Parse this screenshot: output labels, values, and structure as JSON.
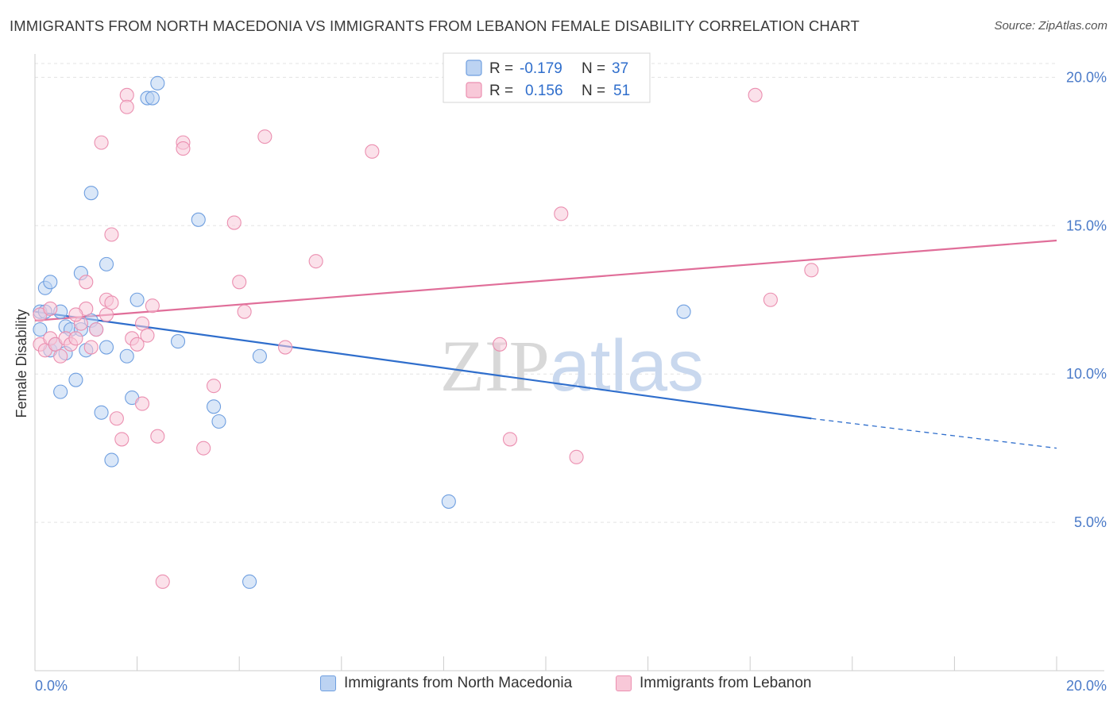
{
  "chart_data": {
    "type": "scatter",
    "title": "IMMIGRANTS FROM NORTH MACEDONIA VS IMMIGRANTS FROM LEBANON FEMALE DISABILITY CORRELATION CHART",
    "source": "Source: ZipAtlas.com",
    "ylabel": "Female Disability",
    "xlabel": "",
    "xlim": [
      0,
      20
    ],
    "ylim": [
      0,
      21
    ],
    "x_tick_labels": [
      "0.0%",
      "20.0%"
    ],
    "y_ticks": [
      5,
      10,
      15,
      20
    ],
    "y_tick_labels": [
      "5.0%",
      "10.0%",
      "15.0%",
      "20.0%"
    ],
    "watermark": "ZIPatlas",
    "legend": [
      {
        "r_label": "R =",
        "r_value": "-0.179",
        "n_label": "N =",
        "n_value": "37"
      },
      {
        "r_label": "R =",
        "r_value": "0.156",
        "n_label": "N =",
        "n_value": "51"
      }
    ],
    "series": [
      {
        "name": "Immigrants from North Macedonia",
        "color": "#6f9fe0",
        "fill": "#bcd3f2",
        "line_color": "#2f6ecc",
        "trend": {
          "x0": 0,
          "y0": 12.1,
          "x1": 15.2,
          "y1": 8.5,
          "dash_to": 20,
          "dash_y": 7.5
        },
        "points": [
          [
            0.1,
            12.1
          ],
          [
            0.1,
            11.5
          ],
          [
            0.2,
            12.9
          ],
          [
            0.2,
            12.1
          ],
          [
            0.3,
            13.1
          ],
          [
            0.3,
            10.8
          ],
          [
            0.4,
            11.0
          ],
          [
            0.5,
            12.1
          ],
          [
            0.5,
            9.4
          ],
          [
            0.6,
            11.6
          ],
          [
            0.7,
            11.5
          ],
          [
            0.8,
            9.8
          ],
          [
            0.9,
            13.4
          ],
          [
            1.0,
            10.8
          ],
          [
            1.1,
            11.8
          ],
          [
            1.1,
            16.1
          ],
          [
            1.2,
            11.5
          ],
          [
            1.3,
            8.7
          ],
          [
            1.4,
            10.9
          ],
          [
            1.4,
            13.7
          ],
          [
            1.5,
            7.1
          ],
          [
            1.8,
            10.6
          ],
          [
            1.9,
            9.2
          ],
          [
            2.0,
            12.5
          ],
          [
            2.2,
            19.3
          ],
          [
            2.3,
            19.3
          ],
          [
            2.4,
            19.8
          ],
          [
            2.8,
            11.1
          ],
          [
            3.2,
            15.2
          ],
          [
            3.5,
            8.9
          ],
          [
            3.6,
            8.4
          ],
          [
            4.2,
            3.0
          ],
          [
            4.4,
            10.6
          ],
          [
            8.1,
            5.7
          ],
          [
            12.7,
            12.1
          ],
          [
            0.6,
            10.7
          ],
          [
            0.9,
            11.5
          ]
        ]
      },
      {
        "name": "Immigrants from Lebanon",
        "color": "#eb8fb0",
        "fill": "#f8c8d8",
        "line_color": "#e06e99",
        "trend": {
          "x0": 0,
          "y0": 11.8,
          "x1": 20,
          "y1": 14.5
        },
        "points": [
          [
            0.1,
            11.0
          ],
          [
            0.1,
            12.0
          ],
          [
            0.2,
            10.8
          ],
          [
            0.3,
            12.2
          ],
          [
            0.3,
            11.2
          ],
          [
            0.4,
            11.0
          ],
          [
            0.5,
            10.6
          ],
          [
            0.6,
            11.2
          ],
          [
            0.7,
            11.0
          ],
          [
            0.8,
            11.2
          ],
          [
            0.9,
            11.7
          ],
          [
            1.0,
            12.2
          ],
          [
            1.0,
            13.1
          ],
          [
            1.1,
            10.9
          ],
          [
            1.2,
            11.5
          ],
          [
            1.3,
            17.8
          ],
          [
            1.4,
            12.5
          ],
          [
            1.4,
            12.0
          ],
          [
            1.5,
            12.4
          ],
          [
            1.5,
            14.7
          ],
          [
            1.6,
            8.5
          ],
          [
            1.7,
            7.8
          ],
          [
            1.8,
            19.4
          ],
          [
            1.8,
            19.0
          ],
          [
            1.9,
            11.2
          ],
          [
            2.0,
            11.0
          ],
          [
            2.1,
            11.7
          ],
          [
            2.1,
            9.0
          ],
          [
            2.2,
            11.3
          ],
          [
            2.3,
            12.3
          ],
          [
            2.4,
            7.9
          ],
          [
            2.5,
            3.0
          ],
          [
            2.9,
            17.8
          ],
          [
            2.9,
            17.6
          ],
          [
            3.3,
            7.5
          ],
          [
            3.5,
            9.6
          ],
          [
            3.9,
            15.1
          ],
          [
            4.0,
            13.1
          ],
          [
            4.1,
            12.1
          ],
          [
            4.5,
            18.0
          ],
          [
            4.9,
            10.9
          ],
          [
            5.5,
            13.8
          ],
          [
            6.6,
            17.5
          ],
          [
            9.1,
            11.0
          ],
          [
            9.3,
            7.8
          ],
          [
            10.3,
            15.4
          ],
          [
            10.6,
            7.2
          ],
          [
            14.1,
            19.4
          ],
          [
            14.4,
            12.5
          ],
          [
            15.2,
            13.5
          ],
          [
            0.8,
            12.0
          ]
        ]
      }
    ]
  }
}
